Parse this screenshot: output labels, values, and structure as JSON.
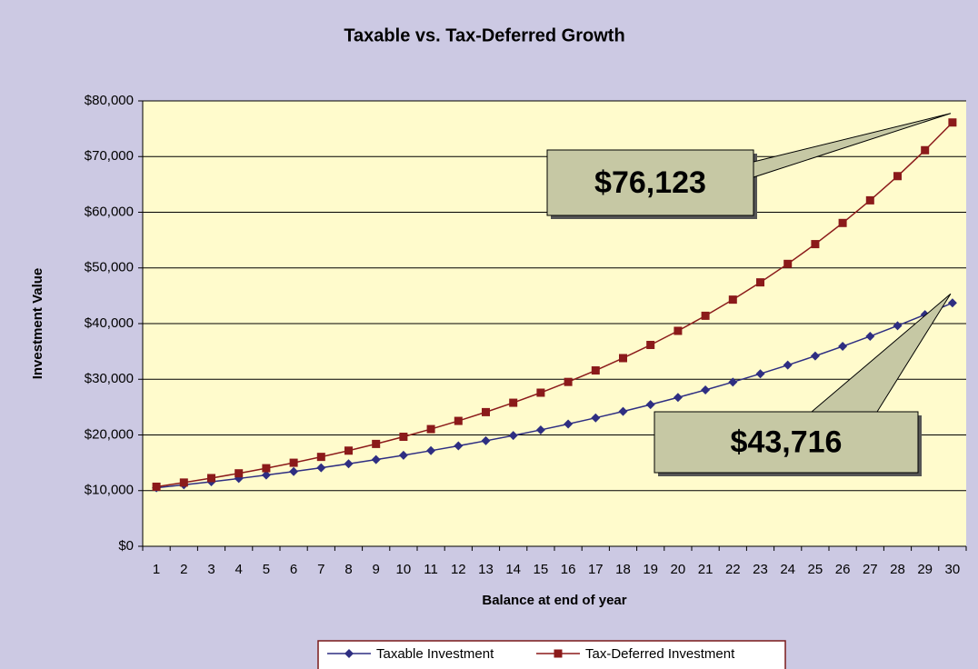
{
  "chart_data": {
    "type": "line",
    "title": "Taxable vs. Tax-Deferred Growth",
    "xlabel": "Balance at end of year",
    "ylabel": "Investment Value",
    "categories": [
      "1",
      "2",
      "3",
      "4",
      "5",
      "6",
      "7",
      "8",
      "9",
      "10",
      "11",
      "12",
      "13",
      "14",
      "15",
      "16",
      "17",
      "18",
      "19",
      "20",
      "21",
      "22",
      "23",
      "24",
      "25",
      "26",
      "27",
      "28",
      "29",
      "30"
    ],
    "series": [
      {
        "name": "Taxable Investment",
        "color": "#2e2e82",
        "marker": "diamond",
        "values": [
          10504,
          11033,
          11590,
          12174,
          12787,
          13432,
          14109,
          14820,
          15567,
          16351,
          17175,
          18041,
          18950,
          19905,
          20908,
          21962,
          23069,
          24231,
          25453,
          26735,
          28083,
          29498,
          30985,
          32546,
          34187,
          35910,
          37719,
          39620,
          41617,
          43716
        ]
      },
      {
        "name": "Tax-Deferred Investment",
        "color": "#8b1a1a",
        "marker": "square",
        "values": [
          10700,
          11449,
          12250,
          13108,
          14026,
          15007,
          16058,
          17182,
          18385,
          19672,
          21049,
          22522,
          24098,
          25785,
          27590,
          29522,
          31588,
          33799,
          36165,
          38697,
          41406,
          44304,
          47405,
          50724,
          54274,
          58074,
          62139,
          66488,
          71143,
          76123
        ]
      }
    ],
    "ylim": [
      0,
      80000
    ],
    "yticks": [
      {
        "value": 0,
        "label": "$0"
      },
      {
        "value": 10000,
        "label": "$10,000"
      },
      {
        "value": 20000,
        "label": "$20,000"
      },
      {
        "value": 30000,
        "label": "$30,000"
      },
      {
        "value": 40000,
        "label": "$40,000"
      },
      {
        "value": 50000,
        "label": "$50,000"
      },
      {
        "value": 60000,
        "label": "$60,000"
      },
      {
        "value": 70000,
        "label": "$70,000"
      },
      {
        "value": 80000,
        "label": "$80,000"
      }
    ],
    "grid": true,
    "legend": "bottom",
    "annotations": [
      {
        "text": "$76,123"
      },
      {
        "text": "$43,716"
      }
    ]
  }
}
